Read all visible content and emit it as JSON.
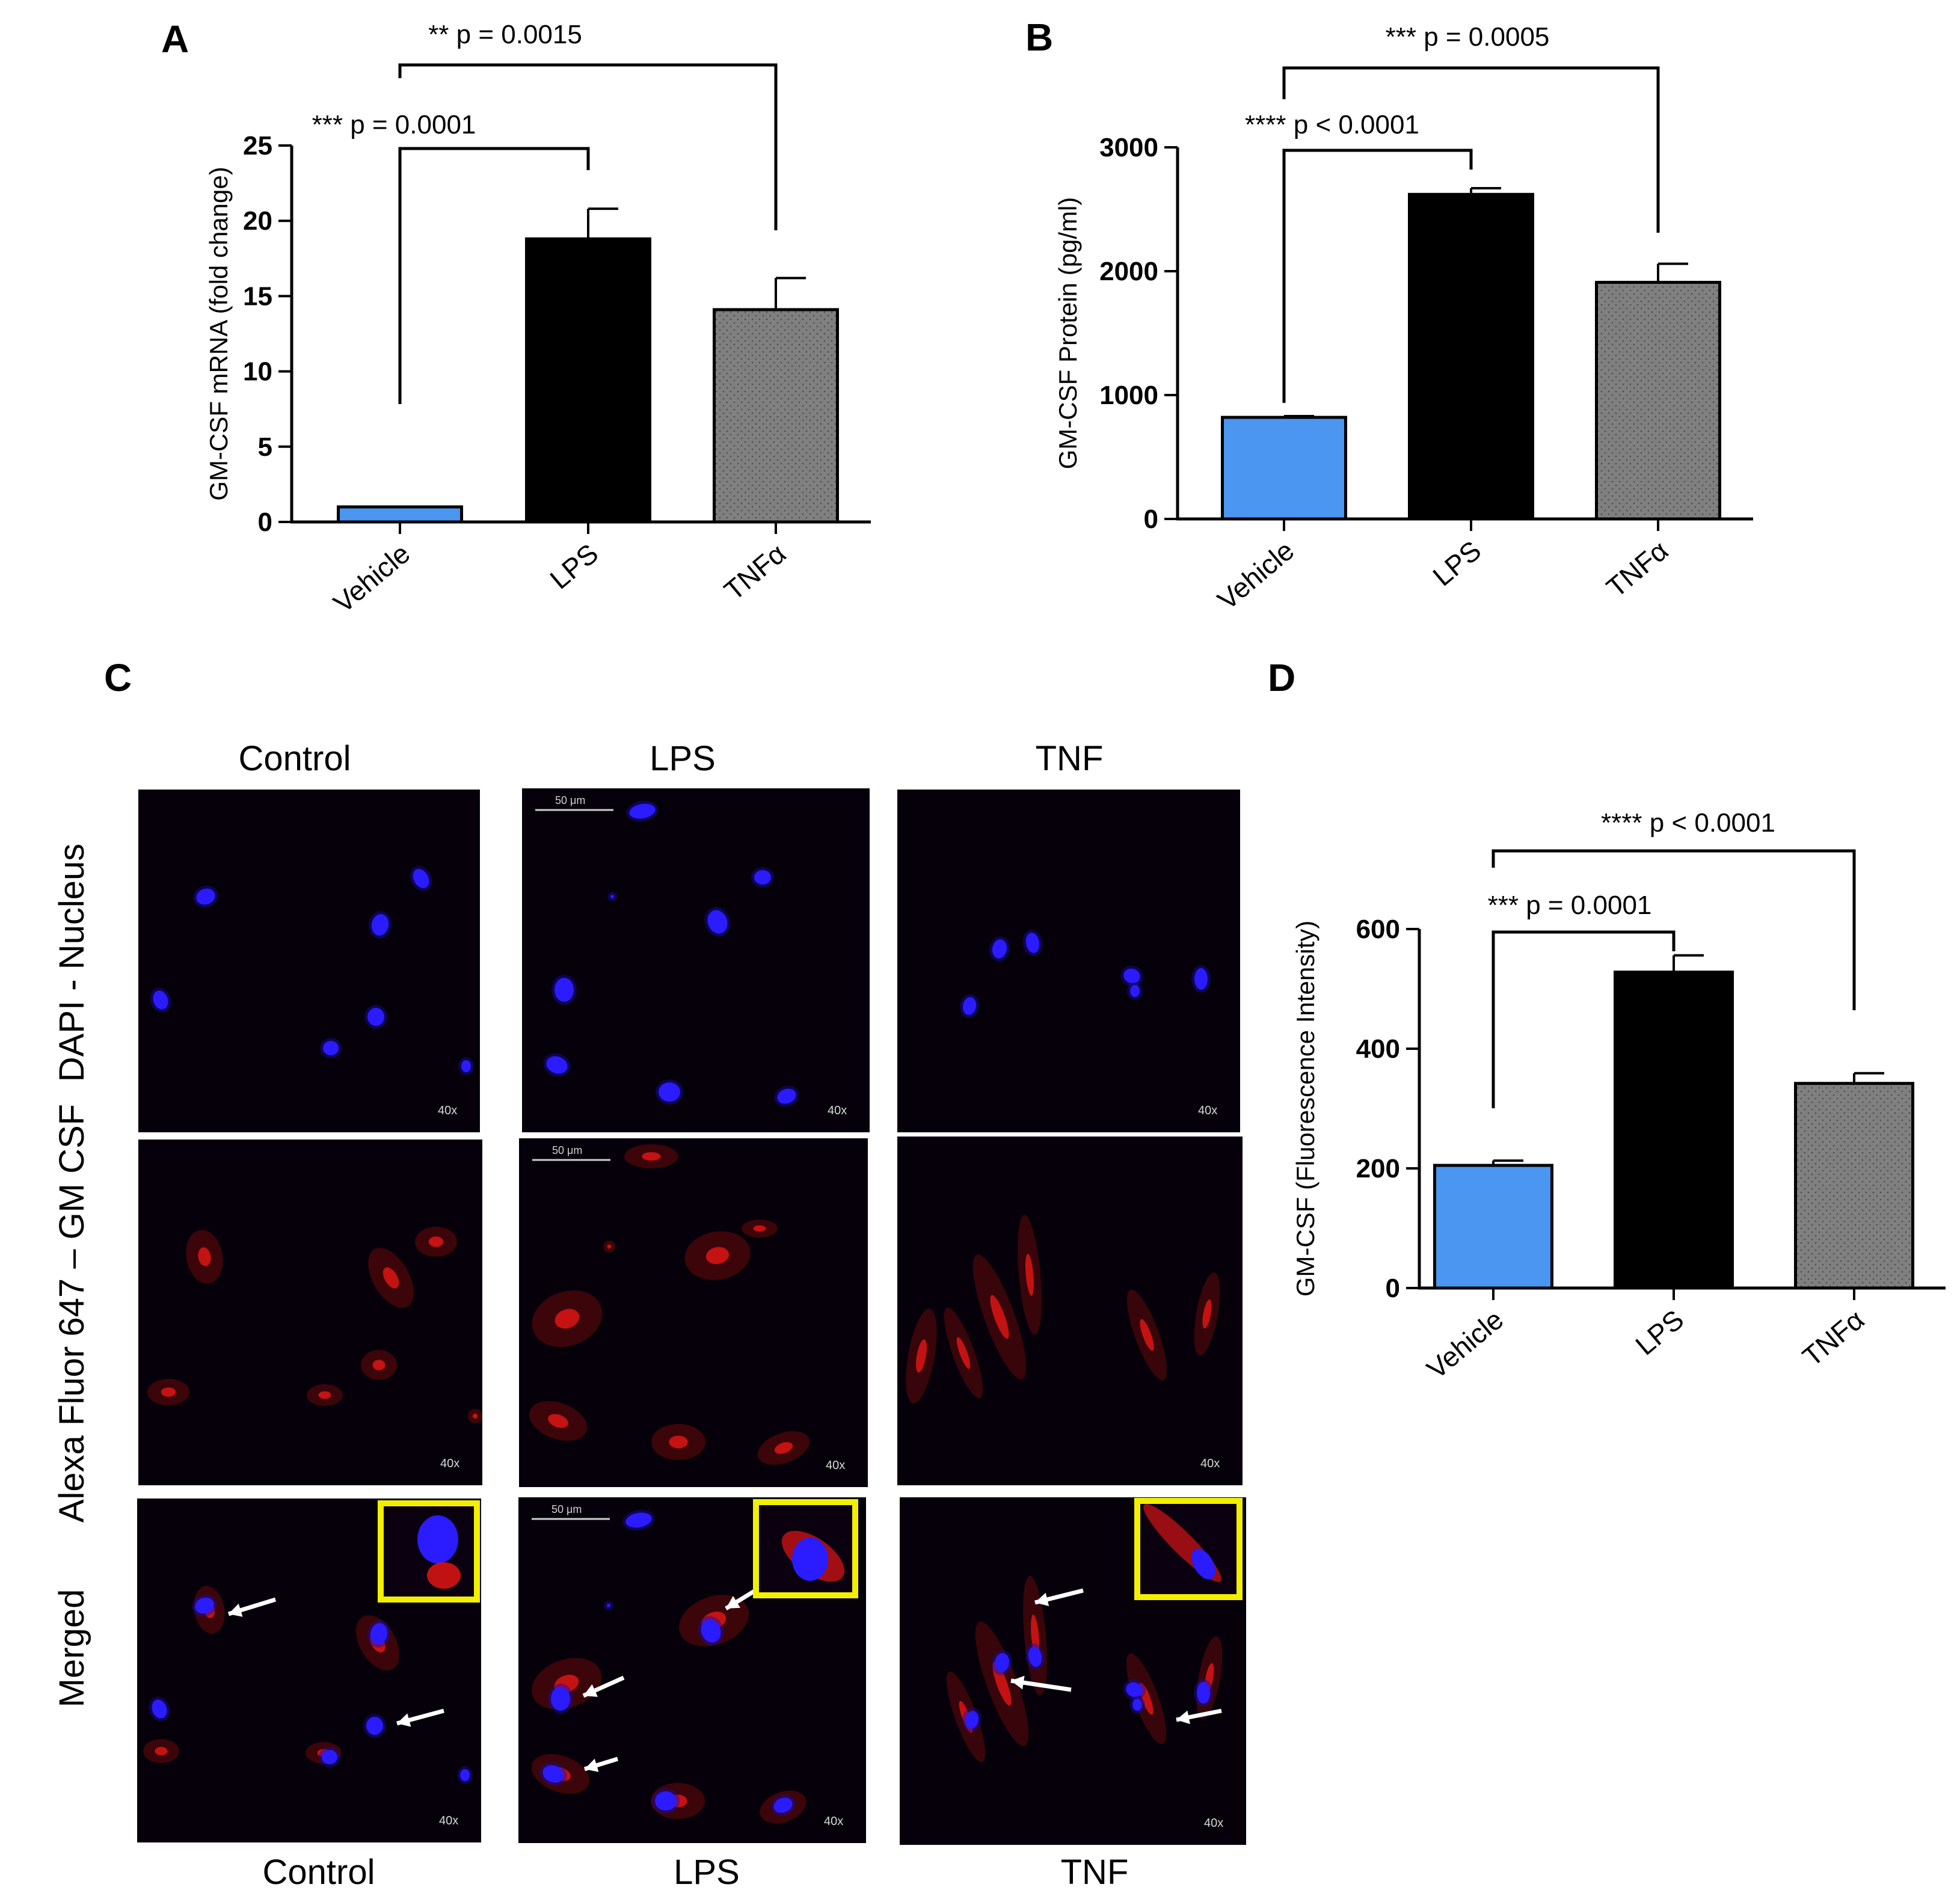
{
  "panels": {
    "a": "A",
    "b": "B",
    "c": "C",
    "d": "D"
  },
  "colors": {
    "vehicle": "#4a96f0",
    "lps": "#000000",
    "tnf": "#808080",
    "nucleus": "#2a1cff",
    "gmcsf": "#d41414",
    "inset_border": "#f2ef00"
  },
  "microscopy": {
    "columns": [
      "Control",
      "LPS",
      "TNF"
    ],
    "bottom_labels": [
      "Control",
      "LPS",
      "TNF"
    ],
    "rows": [
      "DAPI - Nucleus",
      "Alexa Fluor 647 – GM CSF",
      "Merged"
    ],
    "scale_label": "50 μm",
    "magnification": "40x"
  },
  "chart_data": [
    {
      "type": "bar",
      "panel": "A",
      "categories": [
        "Vehicle",
        "LPS",
        "TNFα"
      ],
      "values": [
        1,
        18.8,
        14.1
      ],
      "errors": [
        0,
        2.0,
        2.1
      ],
      "ylabel": "GM-CSF mRNA (fold change)",
      "ylim": [
        0,
        25
      ],
      "yticks": [
        "0",
        "5",
        "10",
        "15",
        "20",
        "25"
      ],
      "annotations": [
        "*** p = 0.0001",
        "** p = 0.0015"
      ]
    },
    {
      "type": "bar",
      "panel": "B",
      "categories": [
        "Vehicle",
        "LPS",
        "TNFα"
      ],
      "values": [
        820,
        2620,
        1910
      ],
      "errors": [
        10,
        50,
        150
      ],
      "ylabel": "GM-CSF Protein (pg/ml)",
      "ylim": [
        0,
        3000
      ],
      "yticks": [
        "0",
        "1000",
        "2000",
        "3000"
      ],
      "annotations": [
        "**** p < 0.0001",
        "*** p = 0.0005"
      ]
    },
    {
      "type": "bar",
      "panel": "D",
      "categories": [
        "Vehicle",
        "LPS",
        "TNFα"
      ],
      "values": [
        205,
        528,
        342
      ],
      "errors": [
        8,
        28,
        17
      ],
      "ylabel": "GM-CSF (Fluorescence Intensity)",
      "ylim": [
        0,
        600
      ],
      "yticks": [
        "0",
        "200",
        "400",
        "600"
      ],
      "annotations": [
        "*** p = 0.0001",
        "**** p < 0.0001"
      ]
    }
  ]
}
